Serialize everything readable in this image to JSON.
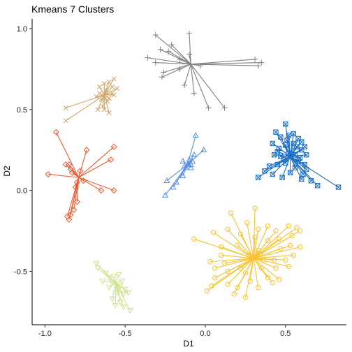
{
  "chart_data": {
    "type": "scatter",
    "title": "Kmeans 7 Clusters",
    "xlabel": "D1",
    "ylabel": "D2",
    "xlim": [
      -1.08,
      0.88
    ],
    "ylim": [
      -0.83,
      1.06
    ],
    "x_ticks": [
      -1.0,
      -0.5,
      0.0,
      0.5
    ],
    "x_tick_labels": [
      "-1.0",
      "-0.5",
      "0.0",
      "0.5"
    ],
    "y_ticks": [
      -0.5,
      0.0,
      0.5,
      1.0
    ],
    "y_tick_labels": [
      "-0.5",
      "0.0",
      "0.5",
      "1.0"
    ],
    "grid": false,
    "legend": "none",
    "series": [
      {
        "color": "#808080",
        "marker": "plus",
        "centroid": [
          -0.09,
          0.78
        ],
        "points": [
          [
            -0.31,
            0.96
          ],
          [
            -0.1,
            0.97
          ],
          [
            -0.21,
            0.9
          ],
          [
            -0.28,
            0.87
          ],
          [
            -0.23,
            0.86
          ],
          [
            -0.36,
            0.82
          ],
          [
            -0.31,
            0.79
          ],
          [
            -0.16,
            0.81
          ],
          [
            -0.1,
            0.84
          ],
          [
            -0.26,
            0.73
          ],
          [
            -0.27,
            0.7
          ],
          [
            -0.13,
            0.65
          ],
          [
            -0.07,
            0.6
          ],
          [
            0.02,
            0.51
          ],
          [
            0.12,
            0.51
          ],
          [
            0.31,
            0.81
          ],
          [
            0.35,
            0.79
          ],
          [
            0.33,
            0.77
          ],
          [
            -0.03,
            0.77
          ],
          [
            -0.16,
            0.75
          ]
        ]
      },
      {
        "color": "#d2a56a",
        "marker": "x",
        "centroid": [
          -0.63,
          0.59
        ],
        "points": [
          [
            -0.87,
            0.51
          ],
          [
            -0.87,
            0.43
          ],
          [
            -0.57,
            0.69
          ],
          [
            -0.6,
            0.67
          ],
          [
            -0.63,
            0.66
          ],
          [
            -0.55,
            0.63
          ],
          [
            -0.66,
            0.64
          ],
          [
            -0.58,
            0.6
          ],
          [
            -0.68,
            0.58
          ],
          [
            -0.61,
            0.55
          ],
          [
            -0.64,
            0.52
          ],
          [
            -0.67,
            0.5
          ],
          [
            -0.6,
            0.48
          ],
          [
            -0.62,
            0.62
          ],
          [
            -0.65,
            0.56
          ],
          [
            -0.66,
            0.6
          ],
          [
            -0.6,
            0.57
          ],
          [
            -0.58,
            0.64
          ],
          [
            -0.63,
            0.5
          ],
          [
            -0.57,
            0.59
          ]
        ]
      },
      {
        "color": "#ef5a30",
        "marker": "diamond",
        "centroid": [
          -0.79,
          0.08
        ],
        "points": [
          [
            -0.93,
            0.36
          ],
          [
            -0.74,
            0.25
          ],
          [
            -0.57,
            0.27
          ],
          [
            -0.59,
            0.19
          ],
          [
            -0.98,
            0.1
          ],
          [
            -0.87,
            0.16
          ],
          [
            -0.85,
            0.16
          ],
          [
            -0.84,
            0.13
          ],
          [
            -0.83,
            0.11
          ],
          [
            -0.8,
            0.05
          ],
          [
            -0.65,
            0.0
          ],
          [
            -0.57,
            0.0
          ],
          [
            -0.8,
            -0.07
          ],
          [
            -0.82,
            -0.12
          ],
          [
            -0.84,
            -0.15
          ],
          [
            -0.85,
            -0.18
          ],
          [
            -0.86,
            -0.16
          ],
          [
            -0.78,
            0.12
          ],
          [
            -0.76,
            0.06
          ],
          [
            -0.81,
            0.02
          ]
        ]
      },
      {
        "color": "#5b8ee0",
        "marker": "triangle",
        "centroid": [
          -0.11,
          0.16
        ],
        "points": [
          [
            -0.06,
            0.34
          ],
          [
            -0.01,
            0.25
          ],
          [
            -0.07,
            0.22
          ],
          [
            -0.1,
            0.19
          ],
          [
            -0.09,
            0.16
          ],
          [
            -0.14,
            0.18
          ],
          [
            -0.13,
            0.15
          ],
          [
            -0.12,
            0.14
          ],
          [
            -0.09,
            0.14
          ],
          [
            -0.14,
            0.09
          ],
          [
            -0.24,
            0.06
          ],
          [
            -0.18,
            0.05
          ],
          [
            -0.2,
            0.02
          ],
          [
            -0.25,
            -0.03
          ],
          [
            -0.11,
            0.16
          ],
          [
            -0.08,
            0.18
          ]
        ]
      },
      {
        "color": "#1a6fc4",
        "marker": "square-x",
        "centroid": [
          0.53,
          0.21
        ],
        "points": [
          [
            0.5,
            0.41
          ],
          [
            0.44,
            0.36
          ],
          [
            0.47,
            0.33
          ],
          [
            0.52,
            0.34
          ],
          [
            0.55,
            0.35
          ],
          [
            0.58,
            0.32
          ],
          [
            0.6,
            0.3
          ],
          [
            0.62,
            0.27
          ],
          [
            0.57,
            0.27
          ],
          [
            0.5,
            0.28
          ],
          [
            0.42,
            0.29
          ],
          [
            0.46,
            0.26
          ],
          [
            0.43,
            0.22
          ],
          [
            0.47,
            0.21
          ],
          [
            0.52,
            0.23
          ],
          [
            0.56,
            0.22
          ],
          [
            0.59,
            0.2
          ],
          [
            0.62,
            0.16
          ],
          [
            0.63,
            0.13
          ],
          [
            0.61,
            0.1
          ],
          [
            0.56,
            0.14
          ],
          [
            0.5,
            0.17
          ],
          [
            0.45,
            0.16
          ],
          [
            0.4,
            0.15
          ],
          [
            0.37,
            0.12
          ],
          [
            0.33,
            0.08
          ],
          [
            0.42,
            0.1
          ],
          [
            0.48,
            0.08
          ],
          [
            0.53,
            0.11
          ],
          [
            0.6,
            0.07
          ],
          [
            0.66,
            0.06
          ],
          [
            0.7,
            0.03
          ],
          [
            0.83,
            0.02
          ],
          [
            0.63,
            0.22
          ],
          [
            0.55,
            0.29
          ],
          [
            0.49,
            0.19
          ],
          [
            0.6,
            0.25
          ],
          [
            0.51,
            0.31
          ],
          [
            0.58,
            0.18
          ],
          [
            0.45,
            0.24
          ]
        ]
      },
      {
        "color": "#f6c432",
        "marker": "circle",
        "centroid": [
          0.3,
          -0.42
        ],
        "points": [
          [
            0.31,
            -0.11
          ],
          [
            0.16,
            -0.14
          ],
          [
            0.26,
            -0.2
          ],
          [
            0.33,
            -0.24
          ],
          [
            0.39,
            -0.22
          ],
          [
            0.44,
            -0.25
          ],
          [
            0.52,
            -0.22
          ],
          [
            0.57,
            -0.23
          ],
          [
            0.59,
            -0.25
          ],
          [
            0.54,
            -0.28
          ],
          [
            0.46,
            -0.3
          ],
          [
            0.39,
            -0.31
          ],
          [
            0.31,
            -0.29
          ],
          [
            0.22,
            -0.27
          ],
          [
            0.14,
            -0.24
          ],
          [
            0.05,
            -0.26
          ],
          [
            -0.07,
            -0.3
          ],
          [
            0.1,
            -0.35
          ],
          [
            0.2,
            -0.34
          ],
          [
            0.47,
            -0.36
          ],
          [
            0.53,
            -0.34
          ],
          [
            0.59,
            -0.35
          ],
          [
            0.55,
            -0.4
          ],
          [
            0.43,
            -0.43
          ],
          [
            0.36,
            -0.43
          ],
          [
            0.1,
            -0.4
          ],
          [
            0.03,
            -0.44
          ],
          [
            0.06,
            -0.48
          ],
          [
            0.14,
            -0.5
          ],
          [
            0.22,
            -0.48
          ],
          [
            0.35,
            -0.48
          ],
          [
            0.44,
            -0.48
          ],
          [
            0.52,
            -0.47
          ],
          [
            0.06,
            -0.54
          ],
          [
            0.14,
            -0.58
          ],
          [
            0.2,
            -0.6
          ],
          [
            0.28,
            -0.56
          ],
          [
            0.39,
            -0.54
          ],
          [
            0.46,
            -0.55
          ],
          [
            0.33,
            -0.6
          ],
          [
            0.01,
            -0.62
          ],
          [
            0.04,
            -0.59
          ],
          [
            0.18,
            -0.64
          ],
          [
            0.25,
            -0.66
          ],
          [
            0.42,
            -0.57
          ],
          [
            0.5,
            -0.43
          ],
          [
            0.27,
            -0.4
          ],
          [
            0.33,
            -0.37
          ],
          [
            0.12,
            -0.45
          ],
          [
            0.25,
            -0.51
          ]
        ]
      },
      {
        "color": "#cfe293",
        "marker": "inverted-triangle",
        "centroid": [
          -0.56,
          -0.57
        ],
        "points": [
          [
            -0.68,
            -0.45
          ],
          [
            -0.67,
            -0.48
          ],
          [
            -0.62,
            -0.51
          ],
          [
            -0.6,
            -0.54
          ],
          [
            -0.57,
            -0.53
          ],
          [
            -0.54,
            -0.52
          ],
          [
            -0.58,
            -0.57
          ],
          [
            -0.53,
            -0.59
          ],
          [
            -0.5,
            -0.61
          ],
          [
            -0.48,
            -0.63
          ],
          [
            -0.55,
            -0.63
          ],
          [
            -0.58,
            -0.67
          ],
          [
            -0.53,
            -0.69
          ],
          [
            -0.56,
            -0.71
          ],
          [
            -0.51,
            -0.72
          ],
          [
            -0.47,
            -0.74
          ],
          [
            -0.51,
            -0.64
          ],
          [
            -0.6,
            -0.6
          ],
          [
            -0.64,
            -0.56
          ],
          [
            -0.52,
            -0.56
          ]
        ]
      }
    ]
  }
}
